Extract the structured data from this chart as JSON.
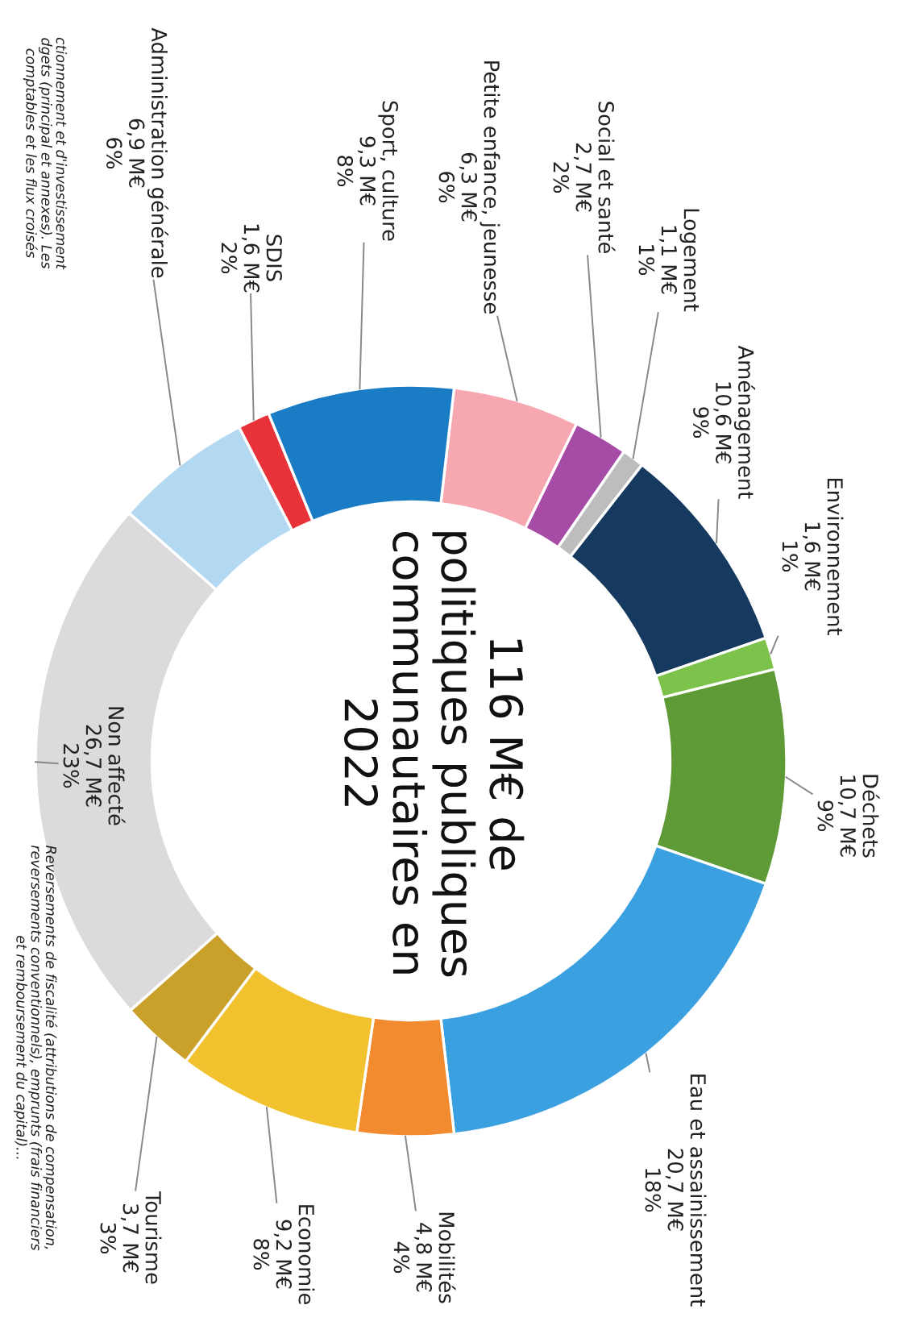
{
  "chart_data": {
    "type": "donut",
    "title": "116 M€ de\npolitiques publiques\ncommunautaires en\n2022",
    "categories": [
      "Petite enfance, jeunesse",
      "Social et santé",
      "Logement",
      "Aménagement",
      "Environnement",
      "Déchets",
      "Eau et assainissement",
      "Mobilités",
      "Economie",
      "Tourisme",
      "Non affecté",
      "Administration générale",
      "SDIS",
      "Sport, culture"
    ],
    "values": [
      6.3,
      2.7,
      1.1,
      10.6,
      1.6,
      10.7,
      20.7,
      4.8,
      9.2,
      3.7,
      26.7,
      6.9,
      1.6,
      9.3
    ],
    "value_labels": [
      "6,3 M€\n6%",
      "2,7 M€\n2%",
      "1,1 M€\n1%",
      "10,6 M€\n9%",
      "1,6 M€\n1%",
      "10,7 M€\n9%",
      "20,7 M€\n18%",
      "4,8 M€\n4%",
      "9,2 M€\n8%",
      "3,7 M€\n3%",
      "26,7 M€\n23%",
      "6,9 M€\n6%",
      "1,6 M€\n2%",
      "9,3 M€\n8%"
    ],
    "colors": [
      "#f7a7b0",
      "#a64ca6",
      "#bdbdbd",
      "#163a5f",
      "#7dc24b",
      "#5e9a35",
      "#3aa0e0",
      "#f28a30",
      "#f2c12e",
      "#c9a02a",
      "#dcdadc",
      "#b3d8f2",
      "#e8323a",
      "#1a7cc4"
    ],
    "annotations": [
      "Reversements de fiscalité (attributions de compensation,\nreversements conventionnels), emprunts (frais financiers\net remboursement du capital)...",
      "ctionnement et d'investissement\ndgets (principal et annexes). Les\ncomptables et les flux croisés"
    ]
  }
}
